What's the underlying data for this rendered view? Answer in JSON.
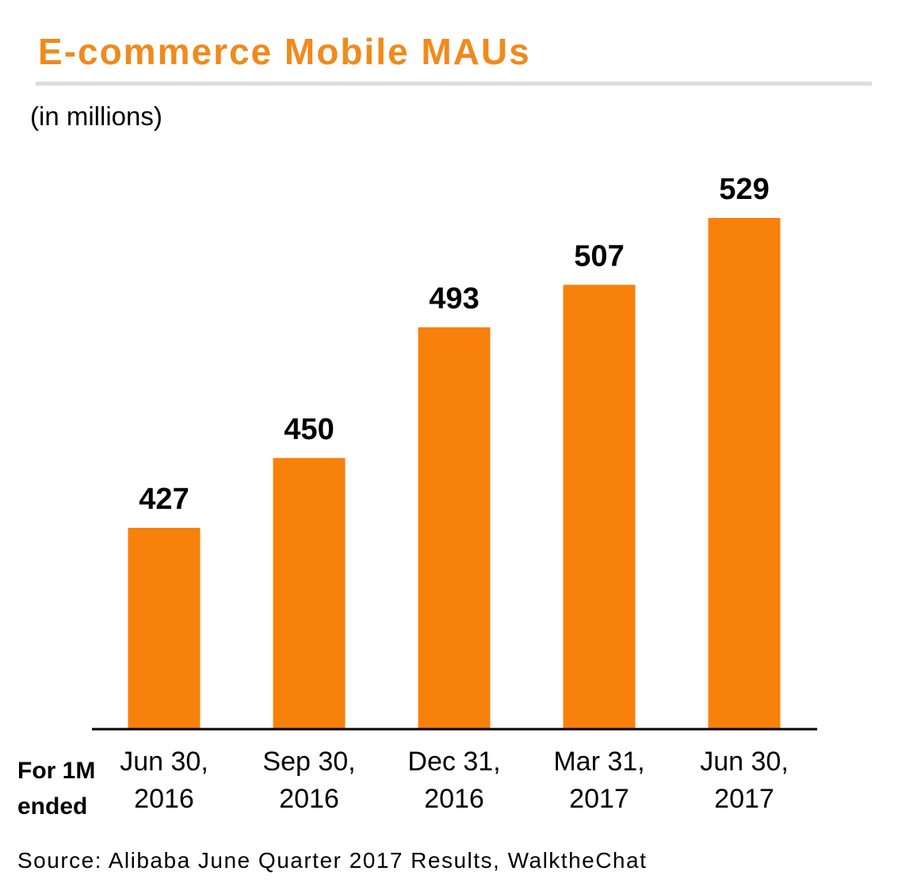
{
  "header": {
    "title": "E-commerce Mobile MAUs",
    "unit_note": "(in millions)"
  },
  "row_label": {
    "line1": "For 1M",
    "line2": "ended"
  },
  "source": "Source: Alibaba June Quarter 2017 Results, WalktheChat",
  "colors": {
    "bar": "#f7810b",
    "title": "#f08a1c",
    "baseline": "#000000"
  },
  "chart_data": {
    "type": "bar",
    "title": "E-commerce Mobile MAUs",
    "ylabel": "(in millions)",
    "xlabel": "For 1M ended",
    "categories": [
      {
        "line1": "Jun 30,",
        "line2": "2016"
      },
      {
        "line1": "Sep 30,",
        "line2": "2016"
      },
      {
        "line1": "Dec 31,",
        "line2": "2016"
      },
      {
        "line1": "Mar 31,",
        "line2": "2017"
      },
      {
        "line1": "Jun 30,",
        "line2": "2017"
      }
    ],
    "values": [
      427,
      450,
      493,
      507,
      529
    ],
    "data_labels": [
      "427",
      "450",
      "493",
      "507",
      "529"
    ],
    "ylim": [
      361,
      529
    ],
    "grid": false,
    "legend": "none"
  }
}
